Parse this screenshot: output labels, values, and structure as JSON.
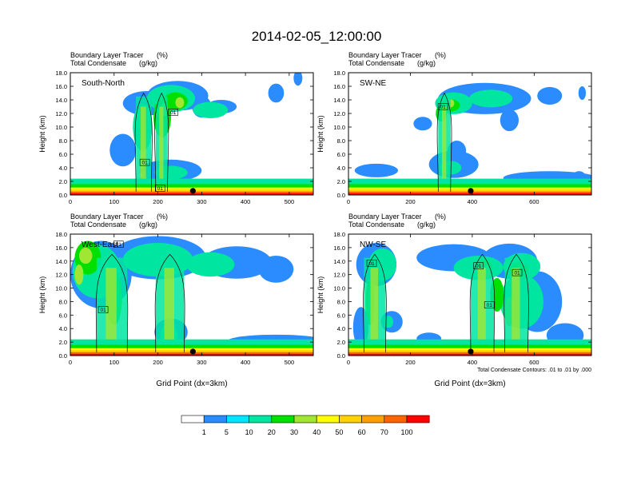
{
  "chart_data": {
    "type": "heatmap",
    "title": "2014-02-05_12:00:00",
    "colorbar": {
      "colors": [
        "#ffffff",
        "#2a8cff",
        "#00e5ff",
        "#00e5a0",
        "#00e000",
        "#a0e632",
        "#ffff00",
        "#ffd200",
        "#ffa000",
        "#ff6400",
        "#ff0000"
      ],
      "labels": [
        "1",
        "5",
        "10",
        "20",
        "30",
        "40",
        "50",
        "60",
        "70",
        "100"
      ]
    },
    "panels": [
      {
        "name": "South-North",
        "series_labels": [
          "Boundary Layer Tracer",
          "Total Condensate"
        ],
        "units": [
          "(%)",
          "(g/kg)"
        ],
        "ylabel": "Height (km)",
        "xlabel": "",
        "xlim": [
          0,
          555
        ],
        "ylim": [
          0,
          18
        ],
        "xticks": [
          0,
          100,
          200,
          300,
          400,
          500
        ],
        "yticks": [
          "0.0",
          "2.0",
          "4.0",
          "6.0",
          "8.0",
          "10.0",
          "12.0",
          "14.0",
          "16.0",
          "18.0"
        ],
        "marker_x": 280,
        "contour_labels": [
          {
            "text": "01",
            "x": 205,
            "y": 1.0
          },
          {
            "text": "01",
            "x": 170,
            "y": 4.8
          },
          {
            "text": "01",
            "x": 235,
            "y": 12.2
          }
        ]
      },
      {
        "name": "SW-NE",
        "series_labels": [
          "Boundary Layer Tracer",
          "Total Condensate"
        ],
        "units": [
          "(%)",
          "(g/kg)"
        ],
        "ylabel": "Height (km)",
        "xlabel": "",
        "xlim": [
          0,
          785
        ],
        "ylim": [
          0,
          18
        ],
        "xticks": [
          0,
          200,
          400,
          600
        ],
        "yticks": [
          "0.0",
          "2.0",
          "4.0",
          "6.0",
          "8.0",
          "10.0",
          "12.0",
          "14.0",
          "16.0",
          "18.0"
        ],
        "marker_x": 395,
        "contour_labels": [
          {
            "text": "01",
            "x": 305,
            "y": 13.0
          }
        ]
      },
      {
        "name": "West-East",
        "series_labels": [
          "Boundary Layer Tracer",
          "Total Condensate"
        ],
        "units": [
          "(%)",
          "(g/kg)"
        ],
        "ylabel": "Height (km)",
        "xlabel": "Grid Point (dx=3km)",
        "xlim": [
          0,
          555
        ],
        "ylim": [
          0,
          18
        ],
        "xticks": [
          0,
          100,
          200,
          300,
          400,
          500
        ],
        "yticks": [
          "0.0",
          "2.0",
          "4.0",
          "6.0",
          "8.0",
          "10.0",
          "12.0",
          "14.0",
          "16.0",
          "18.0"
        ],
        "marker_x": 280,
        "contour_labels": [
          {
            "text": "01",
            "x": 110,
            "y": 16.5
          },
          {
            "text": "01",
            "x": 75,
            "y": 6.8
          }
        ]
      },
      {
        "name": "NW-SE",
        "series_labels": [
          "Boundary Layer Tracer",
          "Total Condensate"
        ],
        "units": [
          "(%)",
          "(g/kg)"
        ],
        "ylabel": "Height (km)",
        "xlabel": "Grid Point (dx=3km)",
        "xlim": [
          0,
          785
        ],
        "ylim": [
          0,
          18
        ],
        "xticks": [
          0,
          200,
          400,
          600
        ],
        "yticks": [
          "0.0",
          "2.0",
          "4.0",
          "6.0",
          "8.0",
          "10.0",
          "12.0",
          "14.0",
          "16.0",
          "18.0"
        ],
        "marker_x": 395,
        "contour_labels": [
          {
            "text": "01",
            "x": 75,
            "y": 13.7
          },
          {
            "text": "01",
            "x": 420,
            "y": 13.3
          },
          {
            "text": "01",
            "x": 545,
            "y": 12.3
          },
          {
            "text": "01",
            "x": 455,
            "y": 7.5
          }
        ],
        "annotation": "Total Condensate Contours: .01 to .01 by .000"
      }
    ]
  }
}
